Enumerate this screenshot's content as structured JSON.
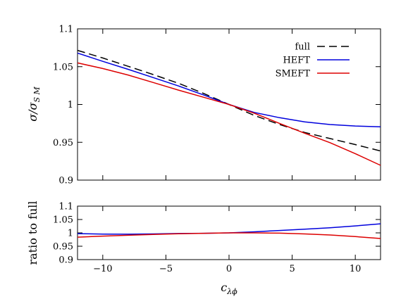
{
  "chart_data": [
    {
      "type": "line",
      "xlim": [
        -12,
        12
      ],
      "ylim": [
        0.9,
        1.1
      ],
      "ylabel_parts": {
        "base": "σ/σ",
        "sub": "S M"
      },
      "xticks": [
        -10,
        -5,
        0,
        5,
        10
      ],
      "yticks": [
        0.9,
        0.95,
        1,
        1.05,
        1.1
      ],
      "ytick_labels": [
        "0.9",
        "0.95",
        "1",
        "1.05",
        "1.1"
      ],
      "legend_position": "top-right",
      "grid": false,
      "series": [
        {
          "name": "full",
          "color": "#000000",
          "dash": "dashed",
          "x": [
            -12,
            -10,
            -8,
            -6,
            -4,
            -2,
            0,
            2,
            4,
            6,
            8,
            10,
            12
          ],
          "y": [
            1.0715,
            1.0615,
            1.0505,
            1.0395,
            1.028,
            1.0145,
            1.0,
            0.9855,
            0.9735,
            0.963,
            0.955,
            0.947,
            0.9385
          ]
        },
        {
          "name": "HEFT",
          "color": "#0000dd",
          "dash": "solid",
          "x": [
            -12,
            -10,
            -8,
            -6,
            -4,
            -2,
            0,
            2,
            4,
            6,
            8,
            10,
            12
          ],
          "y": [
            1.068,
            1.057,
            1.0465,
            1.0355,
            1.0245,
            1.0125,
            1.0,
            0.9895,
            0.9825,
            0.977,
            0.9735,
            0.9715,
            0.9705
          ]
        },
        {
          "name": "SMEFT",
          "color": "#dd0000",
          "dash": "solid",
          "x": [
            -12,
            -10,
            -8,
            -6,
            -4,
            -2,
            0,
            2,
            4,
            6,
            8,
            10,
            12
          ],
          "y": [
            1.055,
            1.0475,
            1.039,
            1.029,
            1.019,
            1.0095,
            1.0,
            0.9885,
            0.975,
            0.962,
            0.9495,
            0.935,
            0.9195
          ]
        }
      ]
    },
    {
      "type": "line",
      "xlim": [
        -12,
        12
      ],
      "ylim": [
        0.9,
        1.1
      ],
      "xlabel_parts": {
        "base": "c",
        "sub": "λϕ"
      },
      "ylabel": "ratio to full",
      "xticks": [
        -10,
        -5,
        0,
        5,
        10
      ],
      "xtick_labels": [
        "−10",
        "−5",
        "0",
        "5",
        "10"
      ],
      "yticks": [
        0.9,
        0.95,
        1,
        1.05,
        1.1
      ],
      "ytick_labels": [
        "0.9",
        "0.95",
        "1",
        "1.05",
        "1.1"
      ],
      "grid": false,
      "series": [
        {
          "name": "HEFT",
          "color": "#0000dd",
          "dash": "solid",
          "x": [
            -12,
            -10,
            -8,
            -6,
            -4,
            -2,
            0,
            2,
            4,
            6,
            8,
            10,
            12
          ],
          "y": [
            0.997,
            0.9955,
            0.995,
            0.996,
            0.9975,
            0.9985,
            1.0,
            1.004,
            1.009,
            1.014,
            1.019,
            1.026,
            1.034
          ]
        },
        {
          "name": "SMEFT",
          "color": "#dd0000",
          "dash": "solid",
          "x": [
            -12,
            -10,
            -8,
            -6,
            -4,
            -2,
            0,
            2,
            4,
            6,
            8,
            10,
            12
          ],
          "y": [
            0.984,
            0.988,
            0.991,
            0.994,
            0.9965,
            0.9985,
            1.0,
            1.0,
            0.999,
            0.996,
            0.992,
            0.986,
            0.979
          ]
        }
      ]
    }
  ]
}
